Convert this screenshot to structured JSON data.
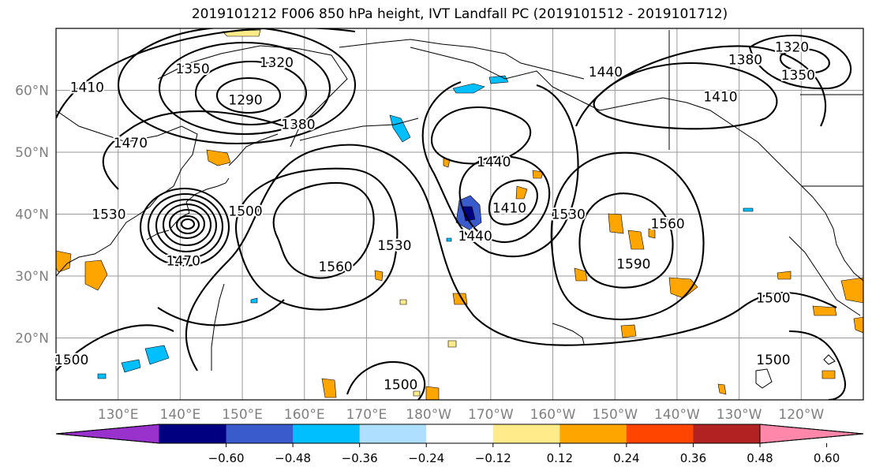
{
  "title": "2019101212 F006 850 hPa height, IVT Landfall PC (2019101512 - 2019101712)",
  "lat_labels": [
    {
      "label": "60°N",
      "lat": 60
    },
    {
      "label": "50°N",
      "lat": 50
    },
    {
      "label": "40°N",
      "lat": 40
    },
    {
      "label": "30°N",
      "lat": 30
    },
    {
      "label": "20°N",
      "lat": 20
    }
  ],
  "lon_labels": [
    {
      "label": "130°E",
      "lon": 130
    },
    {
      "label": "140°E",
      "lon": 140
    },
    {
      "label": "150°E",
      "lon": 150
    },
    {
      "label": "160°E",
      "lon": 160
    },
    {
      "label": "170°E",
      "lon": 170
    },
    {
      "label": "180°W",
      "lon": 180
    },
    {
      "label": "170°W",
      "lon": 190
    },
    {
      "label": "160°W",
      "lon": 200
    },
    {
      "label": "150°W",
      "lon": 210
    },
    {
      "label": "140°W",
      "lon": 220
    },
    {
      "label": "130°W",
      "lon": 230
    },
    {
      "label": "120°W",
      "lon": 240
    }
  ],
  "map_extent": {
    "lon_min": 120,
    "lon_max": 250,
    "lat_min": 10,
    "lat_max": 70
  },
  "contour_labels": [
    {
      "label": "1350",
      "lon": 142,
      "lat": 63.5
    },
    {
      "label": "1320",
      "lon": 155.5,
      "lat": 64.5
    },
    {
      "label": "1410",
      "lon": 125,
      "lat": 60.5
    },
    {
      "label": "1290",
      "lon": 150.5,
      "lat": 58.5
    },
    {
      "label": "1380",
      "lon": 159,
      "lat": 54.5
    },
    {
      "label": "1470",
      "lon": 132,
      "lat": 51.5
    },
    {
      "label": "1530",
      "lon": 128.5,
      "lat": 40
    },
    {
      "label": "1500",
      "lon": 150.5,
      "lat": 40.5
    },
    {
      "label": "1470",
      "lon": 140.5,
      "lat": 32.5
    },
    {
      "label": "1560",
      "lon": 165,
      "lat": 31.5
    },
    {
      "label": "1530",
      "lon": 174.5,
      "lat": 35
    },
    {
      "label": "1440",
      "lon": 190.5,
      "lat": 48.5
    },
    {
      "label": "1410",
      "lon": 193,
      "lat": 41
    },
    {
      "label": "1440",
      "lon": 187.5,
      "lat": 36.5
    },
    {
      "label": "1530",
      "lon": 202.5,
      "lat": 40
    },
    {
      "label": "1590",
      "lon": 213,
      "lat": 32
    },
    {
      "label": "1560",
      "lon": 218.5,
      "lat": 38.5
    },
    {
      "label": "1440",
      "lon": 208.5,
      "lat": 63
    },
    {
      "label": "1410",
      "lon": 227,
      "lat": 59
    },
    {
      "label": "1380",
      "lon": 231,
      "lat": 65
    },
    {
      "label": "1320",
      "lon": 238.5,
      "lat": 67
    },
    {
      "label": "1350",
      "lon": 239.5,
      "lat": 62.5
    },
    {
      "label": "1500",
      "lon": 235.5,
      "lat": 26.5
    },
    {
      "label": "1500",
      "lon": 235.5,
      "lat": 16.5
    },
    {
      "label": "1500",
      "lon": 122.5,
      "lat": 16.5
    },
    {
      "label": "1500",
      "lon": 175.5,
      "lat": 12.5
    }
  ],
  "colorbar": {
    "colors": [
      "#9932CC",
      "#000080",
      "#3A5BCB",
      "#00BFFF",
      "#AEDFFF",
      "#FFFFFF",
      "#FFEB8A",
      "#FFA500",
      "#FF4500",
      "#B22222",
      "#FF88AA"
    ],
    "ticks": [
      "−0.60",
      "−0.48",
      "−0.36",
      "−0.24",
      "−0.12",
      "0.12",
      "0.24",
      "0.36",
      "0.48",
      "0.60"
    ]
  }
}
